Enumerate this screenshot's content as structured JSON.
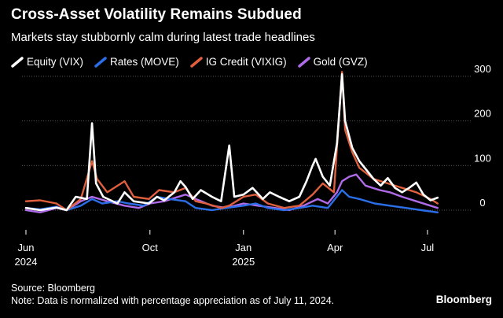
{
  "header": {
    "title": "Cross-Asset Volatility Remains Subdued",
    "subtitle": "Markets stay stubbornly calm during latest trade headlines"
  },
  "footer": {
    "source": "Source: Bloomberg",
    "note": "Note: Data is normalized with percentage appreciation as of July 11, 2024.",
    "brand": "Bloomberg"
  },
  "colors": {
    "background": "#000000",
    "gridline": "#555555",
    "equity": "#ffffff",
    "rates": "#2b6fe8",
    "ig_credit": "#e0603e",
    "gold": "#b06be8"
  },
  "chart_data": {
    "type": "line",
    "title": "Cross-Asset Volatility Remains Subdued",
    "subtitle": "Markets stay stubbornly calm during latest trade headlines",
    "legend_position": "top-left",
    "grid": "horizontal",
    "y_axis": {
      "position": "right",
      "ylim": [
        -10,
        300
      ],
      "ticks": [
        0,
        100,
        200,
        300
      ]
    },
    "x_axis": {
      "range": [
        "2024-06-01",
        "2025-07-15"
      ],
      "ticks": [
        {
          "date": "2024-06-01",
          "label": "Jun",
          "sublabel": "2024"
        },
        {
          "date": "2024-10-01",
          "label": "Oct",
          "sublabel": ""
        },
        {
          "date": "2025-01-01",
          "label": "Jan",
          "sublabel": "2025"
        },
        {
          "date": "2025-04-01",
          "label": "Apr",
          "sublabel": ""
        },
        {
          "date": "2025-07-01",
          "label": "Jul",
          "sublabel": ""
        }
      ]
    },
    "series": [
      {
        "name": "Equity (VIX)",
        "key": "equity",
        "points": [
          [
            "2024-06-01",
            5
          ],
          [
            "2024-06-15",
            0
          ],
          [
            "2024-07-01",
            6
          ],
          [
            "2024-07-11",
            0
          ],
          [
            "2024-07-20",
            30
          ],
          [
            "2024-07-31",
            25
          ],
          [
            "2024-08-05",
            195
          ],
          [
            "2024-08-09",
            60
          ],
          [
            "2024-08-16",
            30
          ],
          [
            "2024-08-30",
            15
          ],
          [
            "2024-09-06",
            40
          ],
          [
            "2024-09-15",
            20
          ],
          [
            "2024-09-30",
            15
          ],
          [
            "2024-10-08",
            30
          ],
          [
            "2024-10-15",
            22
          ],
          [
            "2024-10-25",
            40
          ],
          [
            "2024-10-31",
            65
          ],
          [
            "2024-11-05",
            52
          ],
          [
            "2024-11-12",
            25
          ],
          [
            "2024-11-20",
            45
          ],
          [
            "2024-12-01",
            30
          ],
          [
            "2024-12-10",
            20
          ],
          [
            "2024-12-18",
            145
          ],
          [
            "2024-12-23",
            30
          ],
          [
            "2025-01-01",
            35
          ],
          [
            "2025-01-10",
            50
          ],
          [
            "2025-01-20",
            25
          ],
          [
            "2025-01-27",
            40
          ],
          [
            "2025-02-05",
            30
          ],
          [
            "2025-02-15",
            20
          ],
          [
            "2025-02-25",
            30
          ],
          [
            "2025-03-04",
            65
          ],
          [
            "2025-03-10",
            100
          ],
          [
            "2025-03-13",
            115
          ],
          [
            "2025-03-20",
            75
          ],
          [
            "2025-03-27",
            55
          ],
          [
            "2025-04-03",
            150
          ],
          [
            "2025-04-08",
            305
          ],
          [
            "2025-04-11",
            200
          ],
          [
            "2025-04-18",
            140
          ],
          [
            "2025-04-25",
            110
          ],
          [
            "2025-05-02",
            90
          ],
          [
            "2025-05-09",
            70
          ],
          [
            "2025-05-16",
            55
          ],
          [
            "2025-05-23",
            72
          ],
          [
            "2025-05-30",
            50
          ],
          [
            "2025-06-06",
            40
          ],
          [
            "2025-06-13",
            50
          ],
          [
            "2025-06-20",
            62
          ],
          [
            "2025-06-27",
            35
          ],
          [
            "2025-07-04",
            22
          ],
          [
            "2025-07-11",
            28
          ]
        ]
      },
      {
        "name": "Rates (MOVE)",
        "key": "rates",
        "points": [
          [
            "2024-06-01",
            5
          ],
          [
            "2024-06-15",
            2
          ],
          [
            "2024-07-01",
            8
          ],
          [
            "2024-07-11",
            0
          ],
          [
            "2024-07-25",
            10
          ],
          [
            "2024-08-05",
            25
          ],
          [
            "2024-08-15",
            15
          ],
          [
            "2024-08-30",
            20
          ],
          [
            "2024-09-10",
            15
          ],
          [
            "2024-09-25",
            10
          ],
          [
            "2024-10-08",
            30
          ],
          [
            "2024-10-20",
            25
          ],
          [
            "2024-11-05",
            20
          ],
          [
            "2024-11-15",
            5
          ],
          [
            "2024-12-01",
            0
          ],
          [
            "2024-12-15",
            5
          ],
          [
            "2025-01-01",
            10
          ],
          [
            "2025-01-13",
            15
          ],
          [
            "2025-01-25",
            5
          ],
          [
            "2025-02-10",
            0
          ],
          [
            "2025-02-25",
            5
          ],
          [
            "2025-03-10",
            10
          ],
          [
            "2025-03-25",
            5
          ],
          [
            "2025-04-08",
            45
          ],
          [
            "2025-04-15",
            30
          ],
          [
            "2025-04-25",
            25
          ],
          [
            "2025-05-10",
            15
          ],
          [
            "2025-05-25",
            10
          ],
          [
            "2025-06-10",
            5
          ],
          [
            "2025-06-25",
            0
          ],
          [
            "2025-07-11",
            -5
          ]
        ]
      },
      {
        "name": "IG Credit (VIXIG)",
        "key": "ig_credit",
        "points": [
          [
            "2024-06-01",
            20
          ],
          [
            "2024-06-15",
            22
          ],
          [
            "2024-07-01",
            15
          ],
          [
            "2024-07-11",
            0
          ],
          [
            "2024-07-25",
            25
          ],
          [
            "2024-08-05",
            110
          ],
          [
            "2024-08-10",
            70
          ],
          [
            "2024-08-20",
            40
          ],
          [
            "2024-09-06",
            65
          ],
          [
            "2024-09-15",
            30
          ],
          [
            "2024-09-30",
            25
          ],
          [
            "2024-10-10",
            45
          ],
          [
            "2024-10-25",
            40
          ],
          [
            "2024-11-05",
            50
          ],
          [
            "2024-11-15",
            20
          ],
          [
            "2024-11-25",
            15
          ],
          [
            "2024-12-10",
            5
          ],
          [
            "2024-12-18",
            10
          ],
          [
            "2025-01-01",
            30
          ],
          [
            "2025-01-13",
            35
          ],
          [
            "2025-01-25",
            15
          ],
          [
            "2025-02-10",
            5
          ],
          [
            "2025-02-25",
            10
          ],
          [
            "2025-03-10",
            35
          ],
          [
            "2025-03-20",
            60
          ],
          [
            "2025-03-31",
            40
          ],
          [
            "2025-04-08",
            310
          ],
          [
            "2025-04-11",
            180
          ],
          [
            "2025-04-18",
            130
          ],
          [
            "2025-04-25",
            95
          ],
          [
            "2025-05-09",
            70
          ],
          [
            "2025-05-23",
            60
          ],
          [
            "2025-06-06",
            50
          ],
          [
            "2025-06-20",
            40
          ],
          [
            "2025-07-04",
            25
          ],
          [
            "2025-07-11",
            15
          ]
        ]
      },
      {
        "name": "Gold (GVZ)",
        "key": "gold",
        "points": [
          [
            "2024-06-01",
            0
          ],
          [
            "2024-06-15",
            -5
          ],
          [
            "2024-07-01",
            5
          ],
          [
            "2024-07-11",
            0
          ],
          [
            "2024-07-25",
            20
          ],
          [
            "2024-08-05",
            30
          ],
          [
            "2024-08-20",
            20
          ],
          [
            "2024-09-06",
            10
          ],
          [
            "2024-09-20",
            5
          ],
          [
            "2024-10-01",
            15
          ],
          [
            "2024-10-15",
            20
          ],
          [
            "2024-11-05",
            35
          ],
          [
            "2024-11-15",
            25
          ],
          [
            "2024-12-01",
            10
          ],
          [
            "2024-12-15",
            5
          ],
          [
            "2025-01-01",
            15
          ],
          [
            "2025-01-15",
            10
          ],
          [
            "2025-02-01",
            5
          ],
          [
            "2025-02-15",
            0
          ],
          [
            "2025-03-01",
            10
          ],
          [
            "2025-03-15",
            25
          ],
          [
            "2025-03-25",
            15
          ],
          [
            "2025-04-03",
            40
          ],
          [
            "2025-04-08",
            65
          ],
          [
            "2025-04-15",
            75
          ],
          [
            "2025-04-22",
            80
          ],
          [
            "2025-05-01",
            55
          ],
          [
            "2025-05-15",
            45
          ],
          [
            "2025-05-25",
            40
          ],
          [
            "2025-06-06",
            30
          ],
          [
            "2025-06-20",
            20
          ],
          [
            "2025-07-11",
            5
          ]
        ]
      }
    ]
  }
}
